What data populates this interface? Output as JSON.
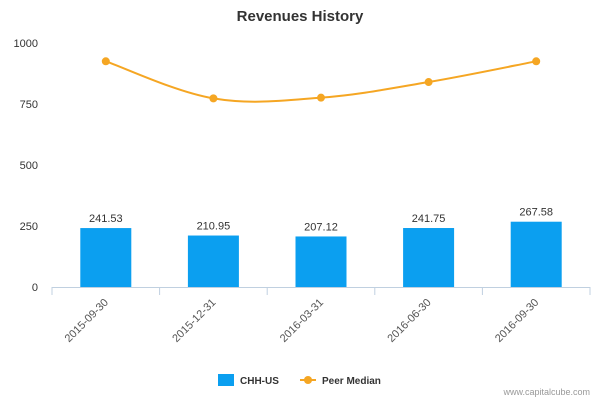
{
  "chart_data": {
    "type": "bar",
    "title": "Revenues History",
    "categories": [
      "2015-09-30",
      "2015-12-31",
      "2016-03-31",
      "2016-06-30",
      "2016-09-30"
    ],
    "ylim": [
      0,
      1000
    ],
    "yticks": [
      0,
      250,
      500,
      750,
      1000
    ],
    "grid": false,
    "legend_position": "bottom",
    "series": [
      {
        "name": "CHH-US",
        "type": "bar",
        "color": "#0b9ff0",
        "values": [
          241.53,
          210.95,
          207.12,
          241.75,
          267.58
        ],
        "labels": [
          "241.53",
          "210.95",
          "207.12",
          "241.75",
          "267.58"
        ]
      },
      {
        "name": "Peer Median",
        "type": "line",
        "color": "#f5a623",
        "values": [
          925,
          773,
          776,
          840,
          925
        ]
      }
    ]
  },
  "credit": "www.capitalcube.com"
}
